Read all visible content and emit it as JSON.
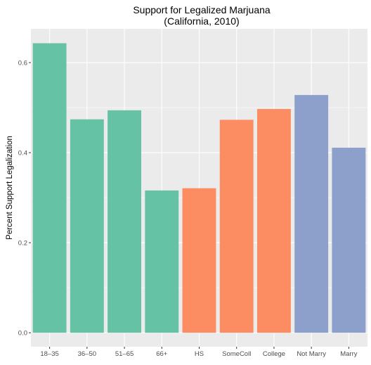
{
  "chart_data": {
    "type": "bar",
    "title": "Support for Legalized Marjuana",
    "subtitle": "(California, 2010)",
    "xlabel": "",
    "ylabel": "Percent Support Legalization",
    "categories": [
      "18–35",
      "36–50",
      "51–65",
      "66+",
      "HS",
      "SomeColl",
      "College",
      "Not Marry",
      "Marry"
    ],
    "values": [
      0.643,
      0.474,
      0.494,
      0.316,
      0.321,
      0.473,
      0.497,
      0.528,
      0.411
    ],
    "bar_colors": [
      "#66c2a5",
      "#66c2a5",
      "#66c2a5",
      "#66c2a5",
      "#fc8d62",
      "#fc8d62",
      "#fc8d62",
      "#8da0cb",
      "#8da0cb"
    ],
    "yticks": [
      0.0,
      0.2,
      0.4,
      0.6
    ],
    "ytick_labels": [
      "0.0",
      "0.2",
      "0.4",
      "0.6"
    ],
    "ylim": [
      -0.031,
      0.675
    ],
    "grid": true,
    "legend": "none",
    "colors": {
      "panel_background": "#ebebeb",
      "grid_major": "#ffffff",
      "tick_text": "#4d4d4d"
    }
  }
}
